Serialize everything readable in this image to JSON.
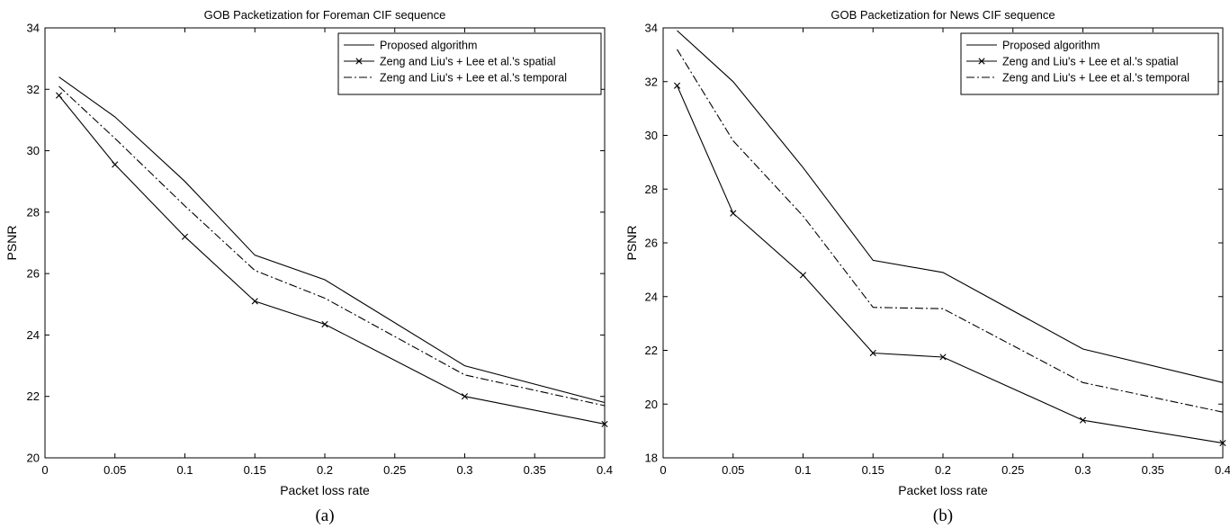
{
  "chart_data": [
    {
      "type": "line",
      "title": "GOB Packetization for Foreman CIF sequence",
      "xlabel": "Packet loss rate",
      "ylabel": "PSNR",
      "caption": "(a)",
      "x": [
        0.01,
        0.05,
        0.1,
        0.15,
        0.2,
        0.3,
        0.4
      ],
      "xlim": [
        0,
        0.4
      ],
      "ylim": [
        20,
        34
      ],
      "xticks": [
        "0",
        "0.05",
        "0.1",
        "0.15",
        "0.2",
        "0.25",
        "0.3",
        "0.35",
        "0.4"
      ],
      "yticks": [
        "20",
        "22",
        "24",
        "26",
        "28",
        "30",
        "32",
        "34"
      ],
      "grid": false,
      "legend_position": "top-right",
      "series": [
        {
          "name": "Proposed algorithm",
          "style": "solid",
          "marker": "none",
          "values": [
            32.4,
            31.1,
            29.0,
            26.6,
            25.8,
            23.0,
            21.8
          ]
        },
        {
          "name": "Zeng and Liu's + Lee et al.'s spatial",
          "style": "solid",
          "marker": "x",
          "values": [
            31.8,
            29.55,
            27.2,
            25.1,
            24.35,
            22.0,
            21.1
          ]
        },
        {
          "name": "Zeng and Liu's + Lee et al.'s temporal",
          "style": "dashdot",
          "marker": "none",
          "values": [
            32.1,
            30.4,
            28.2,
            26.1,
            25.2,
            22.7,
            21.7
          ]
        }
      ]
    },
    {
      "type": "line",
      "title": "GOB Packetization for News CIF sequence",
      "xlabel": "Packet loss rate",
      "ylabel": "PSNR",
      "caption": "(b)",
      "x": [
        0.01,
        0.05,
        0.1,
        0.15,
        0.2,
        0.3,
        0.4
      ],
      "xlim": [
        0,
        0.4
      ],
      "ylim": [
        18,
        34
      ],
      "xticks": [
        "0",
        "0.05",
        "0.1",
        "0.15",
        "0.2",
        "0.25",
        "0.3",
        "0.35",
        "0.4"
      ],
      "yticks": [
        "18",
        "20",
        "22",
        "24",
        "26",
        "28",
        "30",
        "32",
        "34"
      ],
      "grid": false,
      "legend_position": "top-right",
      "series": [
        {
          "name": "Proposed algorithm",
          "style": "solid",
          "marker": "none",
          "values": [
            33.9,
            32.0,
            28.8,
            25.35,
            24.9,
            22.05,
            20.8
          ]
        },
        {
          "name": "Zeng and Liu's + Lee et al.'s spatial",
          "style": "solid",
          "marker": "x",
          "values": [
            31.85,
            27.1,
            24.8,
            21.9,
            21.75,
            19.4,
            18.55
          ]
        },
        {
          "name": "Zeng and Liu's + Lee et al.'s temporal",
          "style": "dashdot",
          "marker": "none",
          "values": [
            33.2,
            29.8,
            27.0,
            23.6,
            23.55,
            20.8,
            19.7
          ]
        }
      ]
    }
  ]
}
